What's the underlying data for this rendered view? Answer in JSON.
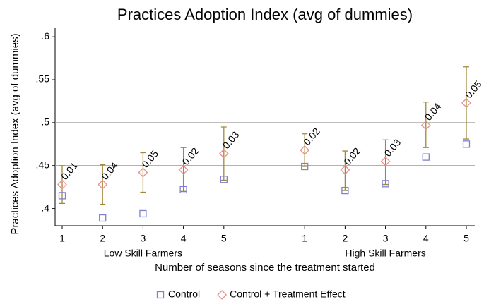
{
  "chart_data": {
    "type": "scatter",
    "title": "Practices Adoption Index (avg of dummies)",
    "y_label": "Practices Adoption Index (avg of dummies)",
    "x_label": "Number of seasons since the treatment started",
    "groups": [
      "Low Skill Farmers",
      "High Skill Farmers"
    ],
    "x": [
      1,
      2,
      3,
      4,
      5,
      7,
      8,
      9,
      10,
      11
    ],
    "xlim": [
      0.825,
      11.21
    ],
    "xticks": [
      1,
      2,
      3,
      4,
      5,
      {
        "value": 7,
        "label": "1"
      },
      {
        "value": 8,
        "label": "2"
      },
      {
        "value": 9,
        "label": "3"
      },
      {
        "value": 10,
        "label": "4"
      },
      {
        "value": 11,
        "label": "5"
      }
    ],
    "ylim": [
      0.38,
      0.61
    ],
    "yticks": [
      {
        "value": 0.4,
        "label": ".4"
      },
      {
        "value": 0.45,
        "label": ".45"
      },
      {
        "value": 0.5,
        "label": ".5"
      },
      {
        "value": 0.55,
        "label": ".55"
      },
      {
        "value": 0.6,
        "label": ".6"
      }
    ],
    "hlines": [
      0.45,
      0.5
    ],
    "errorbar_color": "#a08a3a",
    "series": [
      {
        "name": "Control",
        "marker": "square",
        "color": "#8080d0",
        "values": [
          0.415,
          0.389,
          0.394,
          0.422,
          0.434,
          0.449,
          0.421,
          0.429,
          0.46,
          0.475
        ]
      },
      {
        "name": "Control + Treatment Effect",
        "marker": "diamond",
        "color": "#e8908f",
        "values": [
          0.428,
          0.428,
          0.442,
          0.445,
          0.464,
          0.468,
          0.445,
          0.455,
          0.497,
          0.523
        ],
        "ci_low": [
          0.406,
          0.405,
          0.419,
          0.42,
          0.433,
          0.449,
          0.421,
          0.428,
          0.471,
          0.481
        ],
        "ci_high": [
          0.45,
          0.451,
          0.465,
          0.471,
          0.495,
          0.487,
          0.467,
          0.48,
          0.524,
          0.565
        ],
        "annotations": [
          "0.01",
          "0.04",
          "0.05",
          "0.02",
          "0.03",
          "0.02",
          "0.02",
          "0.03",
          "0.04",
          "0.05"
        ]
      }
    ],
    "legend": "bottom"
  }
}
